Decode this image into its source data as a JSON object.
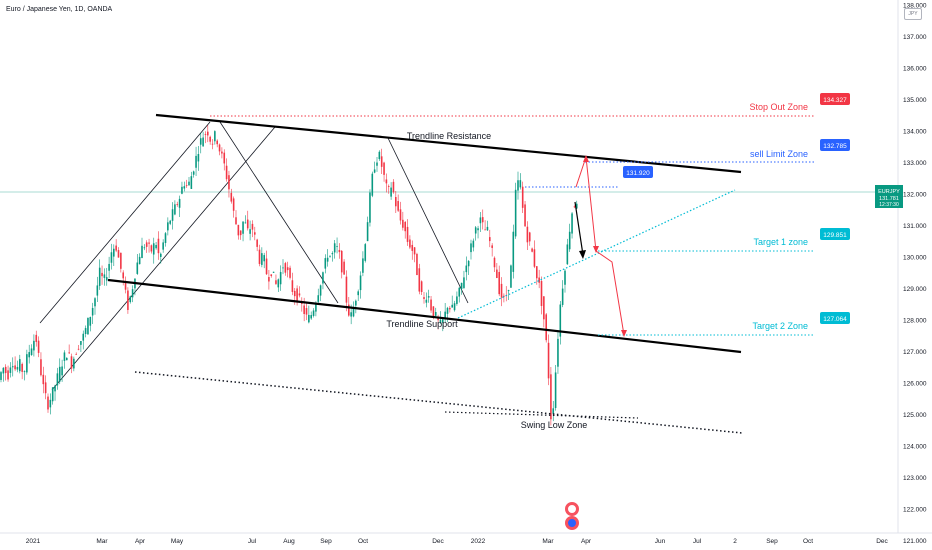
{
  "symbol_title": "Euro / Japanese Yen, 1D, OANDA",
  "currency_badge": "JPY",
  "chart_data": {
    "type": "candlestick",
    "title": "Euro / Japanese Yen, 1D, OANDA",
    "y_axis": {
      "position": "right",
      "range": [
        120.6,
        138.2
      ],
      "tick_labels": [
        "121.000",
        "122.000",
        "123.000",
        "124.000",
        "125.000",
        "126.000",
        "127.000",
        "128.000",
        "129.000",
        "130.000",
        "131.000",
        "132.000",
        "133.000",
        "134.000",
        "135.000",
        "136.000",
        "137.000",
        "138.000"
      ]
    },
    "x_axis": {
      "tick_labels": [
        "2021",
        "Mar",
        "Apr",
        "May",
        "Jul",
        "Aug",
        "Sep",
        "Oct",
        "Dec",
        "2022",
        "Mar",
        "Apr",
        "Jun",
        "Jul",
        "2",
        "Sep",
        "Oct",
        "Dec"
      ]
    },
    "price": {
      "symbol": "EURJPY",
      "last": "131.781",
      "countdown": "12:37:30",
      "color": "#089981"
    },
    "price_series": [
      [
        0,
        126.0
      ],
      [
        3,
        126.3
      ],
      [
        6,
        126.5
      ],
      [
        10,
        126.2
      ],
      [
        14,
        126.8
      ],
      [
        18,
        126.4
      ],
      [
        22,
        126.6
      ],
      [
        26,
        126.3
      ],
      [
        30,
        126.9
      ],
      [
        34,
        127.2
      ],
      [
        38,
        127.5
      ],
      [
        42,
        126.6
      ],
      [
        46,
        125.8
      ],
      [
        50,
        125.3
      ],
      [
        54,
        125.6
      ],
      [
        58,
        126.0
      ],
      [
        62,
        126.4
      ],
      [
        66,
        126.8
      ],
      [
        70,
        127.0
      ],
      [
        74,
        126.6
      ],
      [
        78,
        127.0
      ],
      [
        82,
        127.3
      ],
      [
        86,
        127.5
      ],
      [
        90,
        127.9
      ],
      [
        94,
        128.3
      ],
      [
        98,
        128.8
      ],
      [
        102,
        129.5
      ],
      [
        106,
        129.2
      ],
      [
        110,
        129.6
      ],
      [
        114,
        130.2
      ],
      [
        118,
        130.4
      ],
      [
        122,
        129.8
      ],
      [
        126,
        129.2
      ],
      [
        130,
        128.4
      ],
      [
        134,
        128.9
      ],
      [
        138,
        129.6
      ],
      [
        142,
        130.1
      ],
      [
        146,
        130.4
      ],
      [
        150,
        130.3
      ],
      [
        154,
        130.2
      ],
      [
        158,
        130.5
      ],
      [
        162,
        129.9
      ],
      [
        166,
        130.5
      ],
      [
        170,
        131.0
      ],
      [
        174,
        131.3
      ],
      [
        178,
        131.6
      ],
      [
        182,
        131.9
      ],
      [
        186,
        132.4
      ],
      [
        190,
        132.2
      ],
      [
        194,
        132.6
      ],
      [
        198,
        133.1
      ],
      [
        202,
        133.6
      ],
      [
        206,
        133.9
      ],
      [
        210,
        134.0
      ],
      [
        214,
        133.6
      ],
      [
        218,
        133.9
      ],
      [
        222,
        133.4
      ],
      [
        226,
        133.0
      ],
      [
        230,
        132.4
      ],
      [
        234,
        131.7
      ],
      [
        238,
        131.1
      ],
      [
        242,
        130.6
      ],
      [
        246,
        131.2
      ],
      [
        250,
        130.8
      ],
      [
        254,
        131.0
      ],
      [
        258,
        130.5
      ],
      [
        262,
        129.9
      ],
      [
        266,
        130.0
      ],
      [
        270,
        129.3
      ],
      [
        274,
        129.6
      ],
      [
        278,
        129.1
      ],
      [
        282,
        129.4
      ],
      [
        286,
        129.8
      ],
      [
        290,
        129.5
      ],
      [
        294,
        129.0
      ],
      [
        298,
        128.8
      ],
      [
        302,
        128.6
      ],
      [
        306,
        128.3
      ],
      [
        310,
        128.0
      ],
      [
        314,
        128.2
      ],
      [
        318,
        128.6
      ],
      [
        322,
        129.1
      ],
      [
        326,
        129.6
      ],
      [
        330,
        130.1
      ],
      [
        334,
        130.0
      ],
      [
        338,
        130.4
      ],
      [
        342,
        130.0
      ],
      [
        346,
        129.4
      ],
      [
        350,
        128.3
      ],
      [
        354,
        128.1
      ],
      [
        358,
        128.7
      ],
      [
        362,
        129.3
      ],
      [
        366,
        130.1
      ],
      [
        370,
        131.2
      ],
      [
        374,
        132.4
      ],
      [
        378,
        133.1
      ],
      [
        382,
        133.2
      ],
      [
        386,
        132.6
      ],
      [
        390,
        132.0
      ],
      [
        394,
        132.3
      ],
      [
        398,
        131.7
      ],
      [
        402,
        131.2
      ],
      [
        406,
        131.0
      ],
      [
        410,
        130.5
      ],
      [
        414,
        130.3
      ],
      [
        418,
        129.8
      ],
      [
        422,
        129.0
      ],
      [
        426,
        128.6
      ],
      [
        430,
        128.9
      ],
      [
        434,
        128.3
      ],
      [
        438,
        128.1
      ],
      [
        442,
        127.8
      ],
      [
        446,
        128.0
      ],
      [
        450,
        128.5
      ],
      [
        454,
        128.3
      ],
      [
        458,
        128.6
      ],
      [
        462,
        128.9
      ],
      [
        466,
        129.4
      ],
      [
        470,
        129.9
      ],
      [
        474,
        130.4
      ],
      [
        478,
        130.9
      ],
      [
        482,
        131.2
      ],
      [
        486,
        130.9
      ],
      [
        490,
        130.8
      ],
      [
        494,
        130.2
      ],
      [
        498,
        129.6
      ],
      [
        502,
        128.9
      ],
      [
        506,
        128.6
      ],
      [
        510,
        128.9
      ],
      [
        514,
        129.8
      ],
      [
        518,
        132.0
      ],
      [
        522,
        132.6
      ],
      [
        526,
        131.2
      ],
      [
        530,
        130.6
      ],
      [
        534,
        130.2
      ],
      [
        538,
        129.6
      ],
      [
        542,
        129.0
      ],
      [
        546,
        128.1
      ],
      [
        550,
        126.8
      ],
      [
        553,
        124.9
      ],
      [
        556,
        125.4
      ],
      [
        559,
        126.9
      ],
      [
        562,
        128.3
      ],
      [
        566,
        129.4
      ],
      [
        570,
        130.4
      ],
      [
        574,
        131.4
      ],
      [
        578,
        131.8
      ]
    ],
    "trendlines": [
      {
        "label": "Trendline Resistance",
        "from": [
          "May 2021",
          134.3
        ],
        "to": [
          "Jun 2022",
          132.4
        ]
      },
      {
        "label": "Trendline Support",
        "from": [
          "Mar 2021",
          128.9
        ],
        "to": [
          "Jun 2022",
          126.5
        ]
      }
    ],
    "zones": [
      {
        "label": "Stop Out Zone",
        "value": "134.327",
        "color": "#f23645"
      },
      {
        "label": "sell Limit Zone",
        "value": "132.785",
        "color": "#2962ff"
      },
      {
        "label": "",
        "value": "131.920",
        "color": "#2962ff"
      },
      {
        "label": "Target 1 zone",
        "value": "129.851",
        "color": "#00bcd4"
      },
      {
        "label": "Target 2 Zone",
        "value": "127.064",
        "color": "#00bcd4"
      }
    ],
    "annotations": [
      "Swing Low Zone"
    ],
    "grid": false,
    "legend": "top-left"
  }
}
